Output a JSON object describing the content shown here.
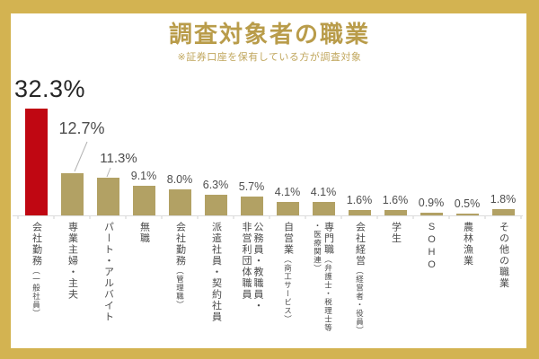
{
  "chart_data": {
    "type": "bar",
    "title": "調査対象者の職業",
    "subtitle": "※証券口座を保有している方が調査対象",
    "unit": "%",
    "xlabel": "",
    "ylabel": "",
    "ylim": [
      0,
      35
    ],
    "grid": false,
    "legend": false,
    "highlight_index": 0,
    "categories": [
      {
        "name": "会社勤務（一般社員）",
        "parts": [
          {
            "t": "会社勤務"
          },
          {
            "t": "（一般社員）",
            "small": true
          }
        ]
      },
      {
        "name": "専業主婦・主夫",
        "parts": [
          {
            "t": "専業主婦・主夫"
          }
        ]
      },
      {
        "name": "パート・アルバイト",
        "parts": [
          {
            "t": "パート・アルバイト"
          }
        ]
      },
      {
        "name": "無職",
        "parts": [
          {
            "t": "無職"
          }
        ]
      },
      {
        "name": "会社勤務（管理職）",
        "parts": [
          {
            "t": "会社勤務"
          },
          {
            "t": "（管理職）",
            "small": true
          }
        ]
      },
      {
        "name": "派遣社員・契約社員",
        "parts": [
          {
            "t": "派遣社員・契約社員"
          }
        ]
      },
      {
        "name": "公務員・教職員・非営利団体職員",
        "parts": [
          {
            "t": "公務員・教職員・"
          },
          {
            "t": "非営利団体職員",
            "block": true
          }
        ]
      },
      {
        "name": "自営業（商工サービス）",
        "parts": [
          {
            "t": "自営業"
          },
          {
            "t": "（商工サービス）",
            "small": true
          }
        ]
      },
      {
        "name": "専門職（弁護士・税理士等・医療関連）",
        "parts": [
          {
            "t": "専門職"
          },
          {
            "t": "（弁護士・税理士等",
            "small": true
          },
          {
            "t": "・医療関連）",
            "small": true,
            "block": true
          }
        ]
      },
      {
        "name": "会社経営（経営者・役員）",
        "parts": [
          {
            "t": "会社経営"
          },
          {
            "t": "（経営者・役員）",
            "small": true
          }
        ]
      },
      {
        "name": "学生",
        "parts": [
          {
            "t": "学生"
          }
        ]
      },
      {
        "name": "SOHO",
        "parts": [
          {
            "t": "SOHO"
          }
        ]
      },
      {
        "name": "農林漁業",
        "parts": [
          {
            "t": "農林漁業"
          }
        ]
      },
      {
        "name": "その他の職業",
        "parts": [
          {
            "t": "その他の職業"
          }
        ]
      }
    ],
    "values": [
      32.3,
      12.7,
      11.3,
      9.1,
      8.0,
      6.3,
      5.7,
      4.1,
      4.1,
      1.6,
      1.6,
      0.9,
      0.5,
      1.8
    ],
    "value_labels": [
      "32.3%",
      "12.7%",
      "11.3%",
      "9.1%",
      "8.0%",
      "6.3%",
      "5.7%",
      "4.1%",
      "4.1%",
      "1.6%",
      "1.6%",
      "0.9%",
      "0.5%",
      "1.8%"
    ],
    "colors": {
      "highlight_bar": "#c00712",
      "bar": "#b2a164",
      "frame": "#d3b351",
      "title_text": "#b99c4a",
      "subtitle_text": "#c0a65c",
      "value_label": "#4d4d4d",
      "big_value_label": "#262626",
      "category_label": "#4a4a4a",
      "axis_line": "#dcdcdc",
      "tick": "#d0d0d0",
      "leader_line": "#b3b3b3"
    }
  }
}
